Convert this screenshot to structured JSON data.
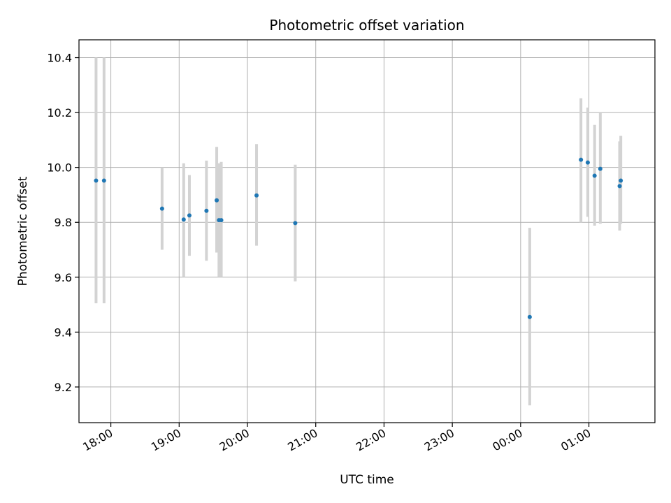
{
  "chart_data": {
    "type": "scatter",
    "title": "Photometric offset variation",
    "xlabel": "UTC time",
    "ylabel": "Photometric offset",
    "xlim": [
      "17:32",
      "01:58"
    ],
    "ylim": [
      9.07,
      10.465
    ],
    "grid": true,
    "x_ticks": [
      {
        "time": "18:00",
        "label": "18:00"
      },
      {
        "time": "19:00",
        "label": "19:00"
      },
      {
        "time": "20:00",
        "label": "20:00"
      },
      {
        "time": "21:00",
        "label": "21:00"
      },
      {
        "time": "22:00",
        "label": "22:00"
      },
      {
        "time": "23:00",
        "label": "23:00"
      },
      {
        "time": "00:00",
        "label": "00:00"
      },
      {
        "time": "01:00",
        "label": "01:00"
      }
    ],
    "y_ticks": [
      {
        "value": 9.2,
        "label": "9.2"
      },
      {
        "value": 9.4,
        "label": "9.4"
      },
      {
        "value": 9.6,
        "label": "9.6"
      },
      {
        "value": 9.8,
        "label": "9.8"
      },
      {
        "value": 10.0,
        "label": "10.0"
      },
      {
        "value": 10.2,
        "label": "10.2"
      },
      {
        "value": 10.4,
        "label": "10.4"
      }
    ],
    "colors": {
      "point": "#1f77b4",
      "error_bar": "#d3d3d3",
      "grid": "#b0b0b0",
      "axes": "#000000"
    },
    "points": [
      {
        "time": "17:47",
        "y": 9.952,
        "err_low": 9.505,
        "err_high": 10.4
      },
      {
        "time": "17:54",
        "y": 9.952,
        "err_low": 9.505,
        "err_high": 10.4
      },
      {
        "time": "18:45",
        "y": 9.85,
        "err_low": 9.7,
        "err_high": 10.0
      },
      {
        "time": "19:04",
        "y": 9.81,
        "err_low": 9.6,
        "err_high": 10.015
      },
      {
        "time": "19:09",
        "y": 9.825,
        "err_low": 9.678,
        "err_high": 9.972
      },
      {
        "time": "19:24",
        "y": 9.842,
        "err_low": 9.66,
        "err_high": 10.025
      },
      {
        "time": "19:33",
        "y": 9.88,
        "err_low": 9.69,
        "err_high": 10.075
      },
      {
        "time": "19:35",
        "y": 9.808,
        "err_low": 9.6,
        "err_high": 10.015
      },
      {
        "time": "19:37",
        "y": 9.808,
        "err_low": 9.6,
        "err_high": 10.02
      },
      {
        "time": "20:08",
        "y": 9.898,
        "err_low": 9.715,
        "err_high": 10.085
      },
      {
        "time": "20:42",
        "y": 9.797,
        "err_low": 9.585,
        "err_high": 10.01
      },
      {
        "time": "00:08",
        "y": 9.455,
        "err_low": 9.133,
        "err_high": 9.78
      },
      {
        "time": "00:53",
        "y": 10.028,
        "err_low": 9.8,
        "err_high": 10.252
      },
      {
        "time": "00:59",
        "y": 10.018,
        "err_low": 9.82,
        "err_high": 10.218
      },
      {
        "time": "01:05",
        "y": 9.97,
        "err_low": 9.788,
        "err_high": 10.155
      },
      {
        "time": "01:10",
        "y": 9.995,
        "err_low": 9.795,
        "err_high": 10.198
      },
      {
        "time": "01:27",
        "y": 9.932,
        "err_low": 9.77,
        "err_high": 10.095
      },
      {
        "time": "01:28",
        "y": 9.952,
        "err_low": 9.795,
        "err_high": 10.115
      }
    ]
  }
}
